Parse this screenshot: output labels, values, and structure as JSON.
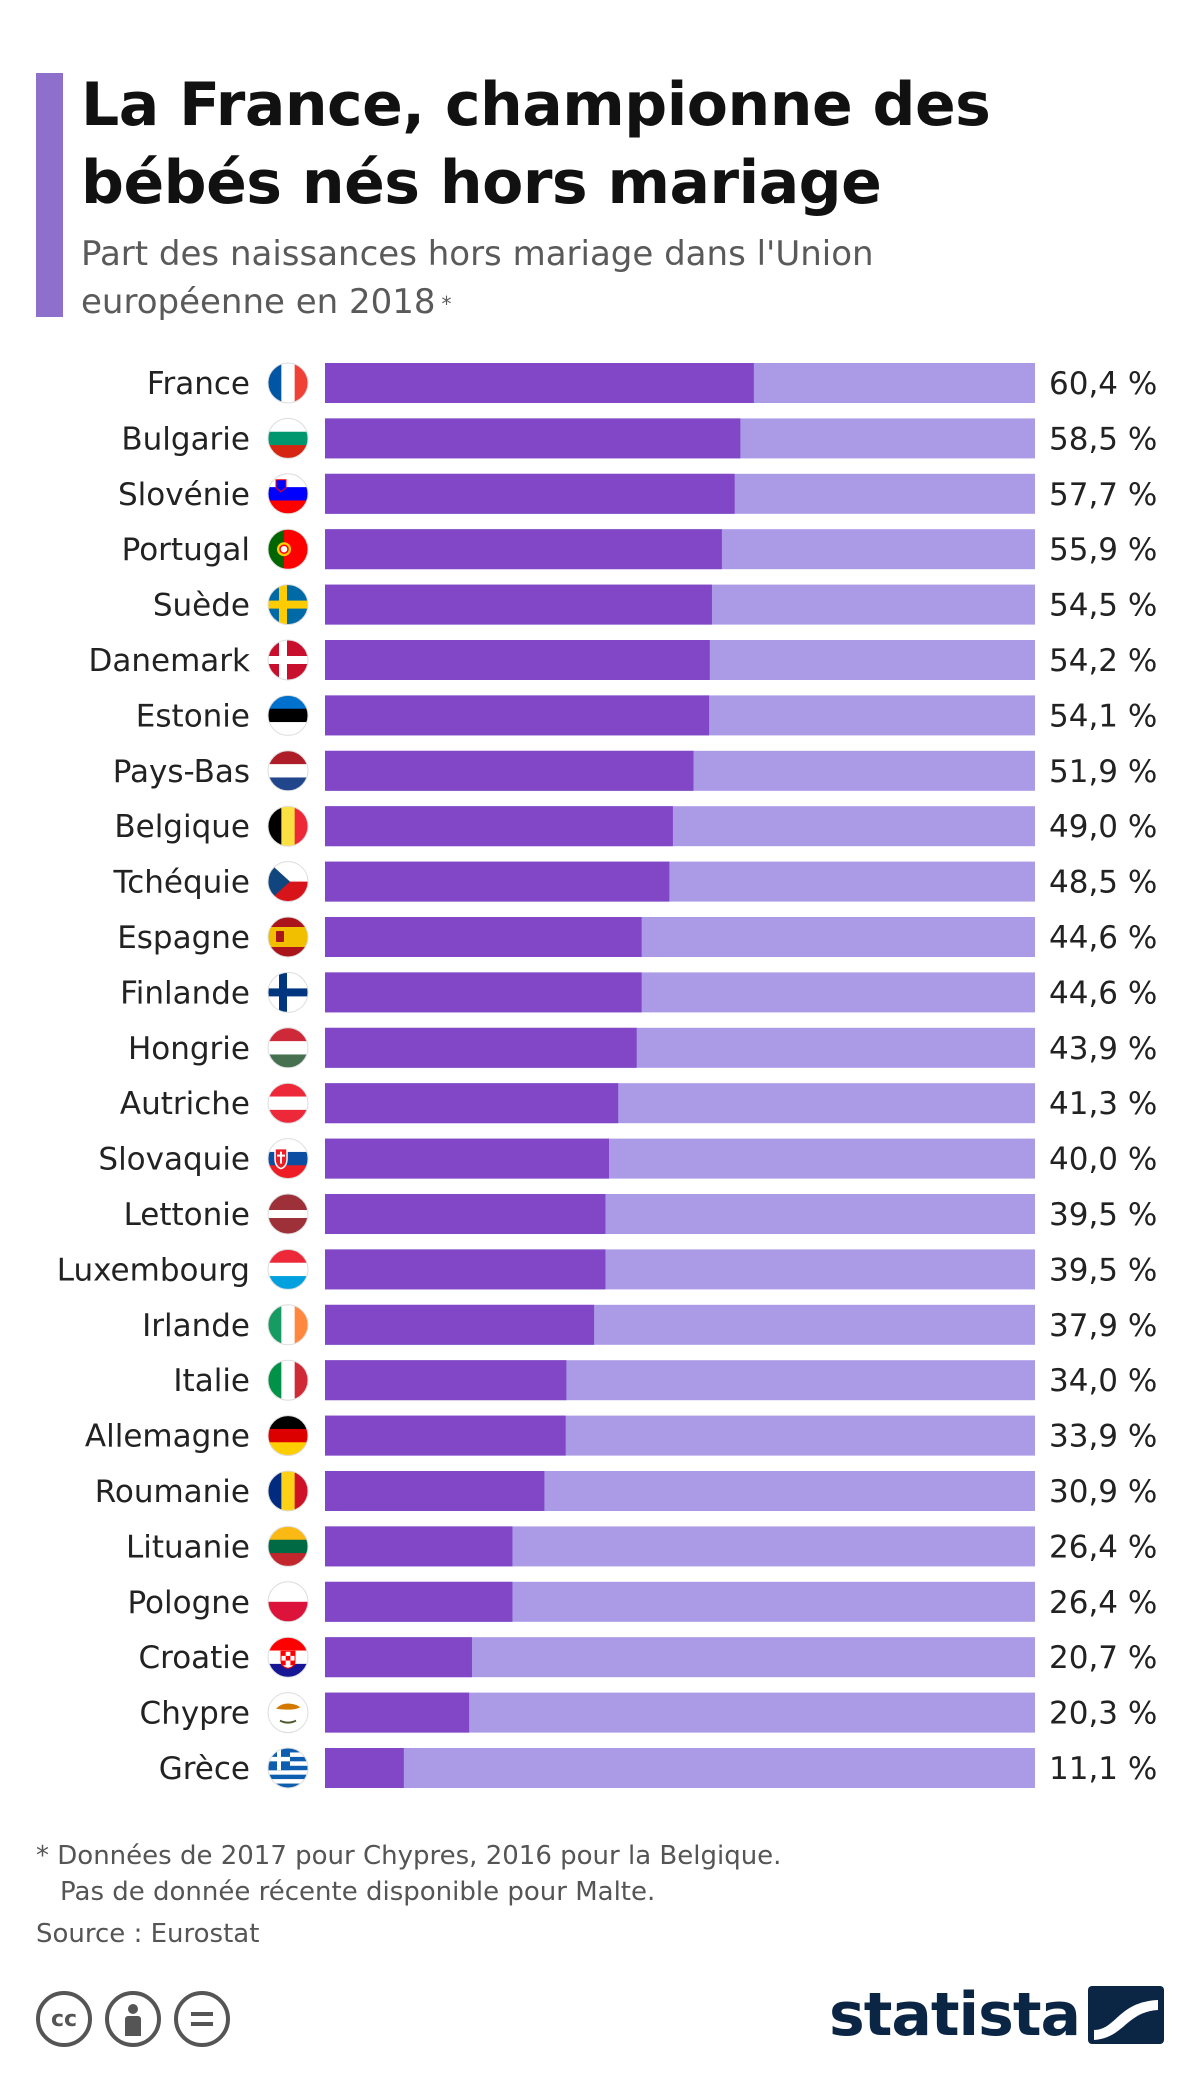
{
  "header": {
    "title": "La France, championne des bébés nés hors mariage",
    "subtitle": "Part des naissances hors mariage dans l'Union européenne en 2018",
    "subtitle_marker": "*"
  },
  "chart_data": {
    "type": "bar",
    "orientation": "horizontal",
    "categories": [
      "France",
      "Bulgarie",
      "Slovénie",
      "Portugal",
      "Suède",
      "Danemark",
      "Estonie",
      "Pays-Bas",
      "Belgique",
      "Tchéquie",
      "Espagne",
      "Finlande",
      "Hongrie",
      "Autriche",
      "Slovaquie",
      "Lettonie",
      "Luxembourg",
      "Irlande",
      "Italie",
      "Allemagne",
      "Roumanie",
      "Lituanie",
      "Pologne",
      "Croatie",
      "Chypre",
      "Grèce"
    ],
    "values": [
      60.4,
      58.5,
      57.7,
      55.9,
      54.5,
      54.2,
      54.1,
      51.9,
      49.0,
      48.5,
      44.6,
      44.6,
      43.9,
      41.3,
      40.0,
      39.5,
      39.5,
      37.9,
      34.0,
      33.9,
      30.9,
      26.4,
      26.4,
      20.7,
      20.3,
      11.1
    ],
    "value_labels": [
      "60,4 %",
      "58,5 %",
      "57,7 %",
      "55,9 %",
      "54,5 %",
      "54,2 %",
      "54,1 %",
      "51,9 %",
      "49,0 %",
      "48,5 %",
      "44,6 %",
      "44,6 %",
      "43,9 %",
      "41,3 %",
      "40,0 %",
      "39,5 %",
      "39,5 %",
      "37,9 %",
      "34,0 %",
      "33,9 %",
      "30,9 %",
      "26,4 %",
      "26,4 %",
      "20,7 %",
      "20,3 %",
      "11,1 %"
    ],
    "xlim": [
      0,
      100
    ],
    "unit": "%",
    "colors": {
      "bar": "#8247c6",
      "track": "#ab9be6"
    }
  },
  "flags": [
    "france-flag-icon",
    "bulgaria-flag-icon",
    "slovenia-flag-icon",
    "portugal-flag-icon",
    "sweden-flag-icon",
    "denmark-flag-icon",
    "estonia-flag-icon",
    "netherlands-flag-icon",
    "belgium-flag-icon",
    "czechia-flag-icon",
    "spain-flag-icon",
    "finland-flag-icon",
    "hungary-flag-icon",
    "austria-flag-icon",
    "slovakia-flag-icon",
    "latvia-flag-icon",
    "luxembourg-flag-icon",
    "ireland-flag-icon",
    "italy-flag-icon",
    "germany-flag-icon",
    "romania-flag-icon",
    "lithuania-flag-icon",
    "poland-flag-icon",
    "croatia-flag-icon",
    "cyprus-flag-icon",
    "greece-flag-icon"
  ],
  "footer": {
    "footnote_line1": "* Données de 2017 pour Chypres, 2016 pour la Belgique.",
    "footnote_line2": "Pas de donnée récente disponible pour Malte.",
    "source": "Source : Eurostat",
    "brand": "statista",
    "license_icons": [
      "cc-icon",
      "attribution-icon",
      "no-derivatives-icon"
    ],
    "cc_text": "cc"
  }
}
